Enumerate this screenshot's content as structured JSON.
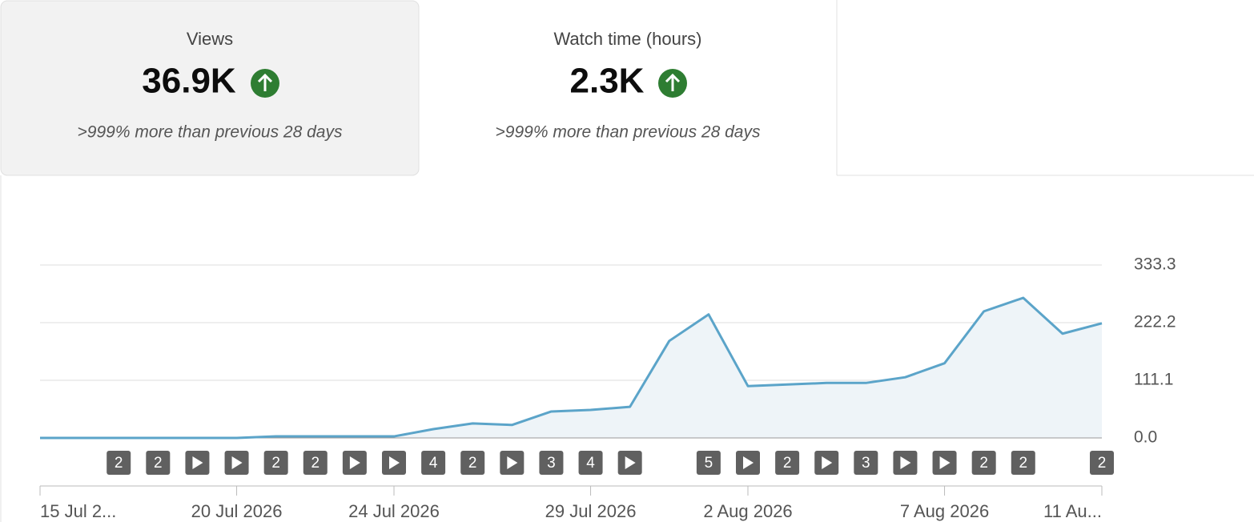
{
  "cards": [
    {
      "title": "Views",
      "value": "36.9K",
      "change": ">999% more than previous 28 days"
    },
    {
      "title": "Watch time (hours)",
      "value": "2.3K",
      "change": ">999% more than previous 28 days"
    }
  ],
  "chart_data": {
    "type": "line",
    "categories": [
      "15 Jul 2...",
      null,
      null,
      null,
      null,
      "20 Jul 2026",
      null,
      null,
      null,
      "24 Jul 2026",
      null,
      null,
      null,
      null,
      "29 Jul 2026",
      null,
      null,
      null,
      "2 Aug 2026",
      null,
      null,
      null,
      null,
      "7 Aug 2026",
      null,
      null,
      null,
      "11 Au..."
    ],
    "values": [
      0,
      0,
      0,
      0,
      0,
      0,
      3,
      3,
      3,
      3,
      17,
      28,
      25,
      51,
      54,
      60,
      187,
      238,
      100,
      103,
      106,
      106,
      117,
      144,
      244,
      270,
      201,
      221
    ],
    "color": "#5ba4c9",
    "ylim": [
      0,
      333.3
    ],
    "yticks": [
      {
        "value": 0,
        "label": "0.0"
      },
      111.1,
      222.2,
      333.3
    ],
    "grid": true,
    "badges": [
      null,
      null,
      "2",
      "2",
      {
        "icon": "play"
      },
      {
        "icon": "play"
      },
      "2",
      "2",
      {
        "icon": "play"
      },
      {
        "icon": "play"
      },
      "4",
      "2",
      {
        "icon": "play"
      },
      "3",
      "4",
      {
        "icon": "play"
      },
      null,
      "5",
      {
        "icon": "play"
      },
      "2",
      {
        "icon": "play"
      },
      "3",
      {
        "icon": "play"
      },
      {
        "icon": "play"
      },
      "2",
      "2",
      null,
      "2"
    ]
  }
}
